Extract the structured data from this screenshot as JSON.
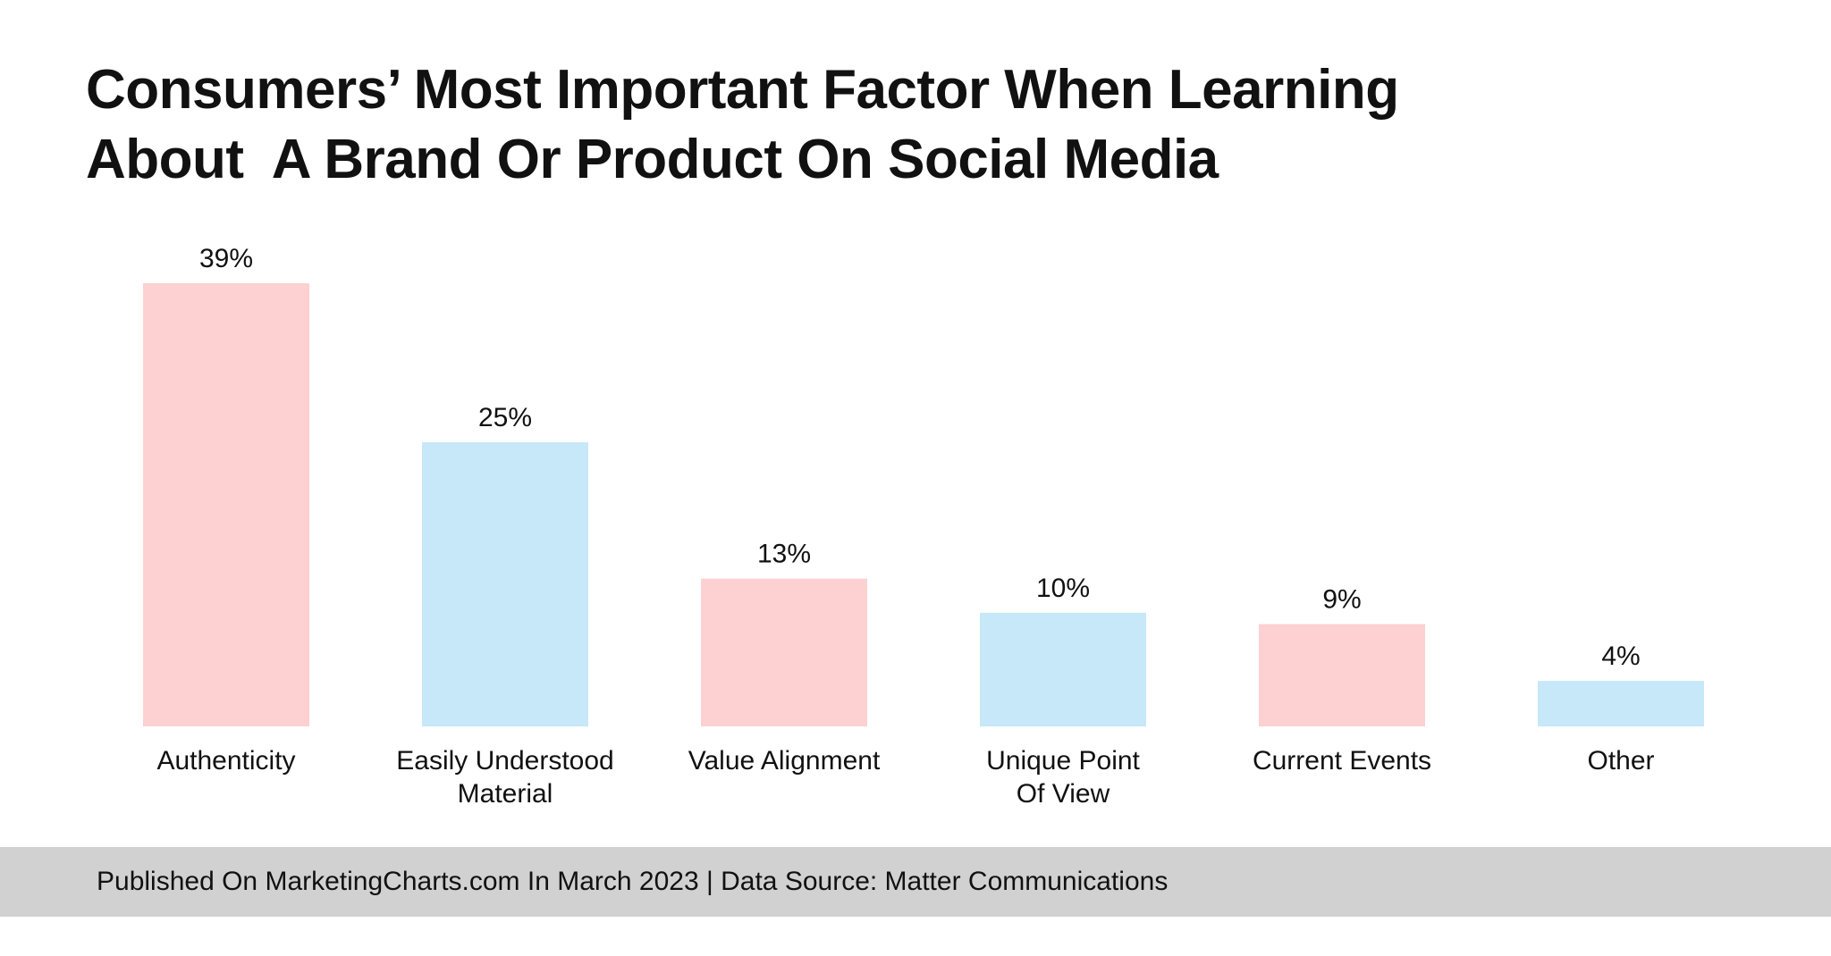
{
  "chart_data": {
    "type": "bar",
    "title": [
      "Consumers’ Most Important Factor When Learning",
      "About  A Brand Or Product On Social Media"
    ],
    "categories": [
      [
        "Authenticity"
      ],
      [
        "Easily Understood",
        "Material"
      ],
      [
        "Value Alignment"
      ],
      [
        "Unique Point",
        "Of View"
      ],
      [
        "Current Events"
      ],
      [
        "Other"
      ]
    ],
    "values": [
      39,
      25,
      13,
      10,
      9,
      4
    ],
    "value_labels": [
      "39%",
      "25%",
      "13%",
      "10%",
      "9%",
      "4%"
    ],
    "unit": "%",
    "bar_colors": [
      "#fdd0d1",
      "#c6e8f8",
      "#fdd0d1",
      "#c6e8f8",
      "#fdd0d1",
      "#c6e8f8"
    ],
    "xlabel": "",
    "ylabel": "",
    "ylim": [
      0,
      39
    ],
    "grid": false,
    "legend": "none"
  },
  "footer": {
    "text": "Published On MarketingCharts.com In March 2023 | Data Source: Matter Communications"
  }
}
